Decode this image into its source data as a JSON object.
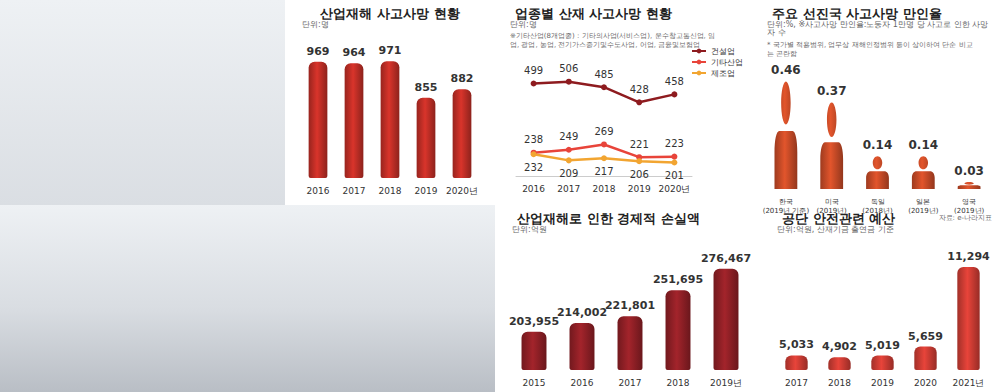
{
  "chart_data": [
    {
      "type": "bar",
      "title": "산업재해 사고사망 현황",
      "subtitle": "단위:명",
      "categories": [
        "2016",
        "2017",
        "2018",
        "2019",
        "2020년"
      ],
      "values": [
        969,
        964,
        971,
        855,
        882
      ],
      "color": "#d9342b",
      "ylim": [
        600,
        1000
      ],
      "data_labels": true,
      "tick_labels": "x"
    },
    {
      "type": "line",
      "title": "업종별 산재 사고사망 현황",
      "subtitle": "단위:명",
      "note": "※기타산업(8개업종) : 기타의사업(서비스업), 운수창고통신업, 임업, 광업, 농업, 전기가스증기및수도사업, 어업, 금융및보험업",
      "categories": [
        "2016",
        "2017",
        "2018",
        "2019",
        "2020년"
      ],
      "series": [
        {
          "name": "건설업",
          "color": "#8e1b1f",
          "values": [
            499,
            506,
            485,
            428,
            458
          ]
        },
        {
          "name": "기타산업",
          "color": "#e8443a",
          "values": [
            238,
            249,
            269,
            221,
            223
          ]
        },
        {
          "name": "제조업",
          "color": "#f2a531",
          "values": [
            232,
            209,
            217,
            206,
            201
          ]
        }
      ],
      "ylim": [
        150,
        550
      ],
      "legend": "top-right",
      "data_labels": true,
      "tick_labels": "x",
      "marker": "circle"
    },
    {
      "type": "bar",
      "title": "주요 선진국 사고사망 만인율",
      "subtitle": "단위:%, ※사고사망 만인율:노동자 1만명 당 사고로 인한 사망자 수",
      "note": "* 국가별 적용범위, 업무상 재해인정범위 등이 상이하여 단순 비교는 곤란함",
      "source": "자료: e-나라지표",
      "categories": [
        "한국\n(2019년 기준)",
        "미국\n(2019년)",
        "독일\n(2018년)",
        "일본\n(2019년)",
        "영국\n(2019년)"
      ],
      "values": [
        0.46,
        0.37,
        0.14,
        0.14,
        0.03
      ],
      "color": "#e2552c",
      "ylim": [
        0,
        0.5
      ],
      "data_labels": true,
      "tick_labels": "x",
      "marker": "person"
    },
    {
      "type": "bar",
      "title": "산업재해로 인한 경제적 손실액",
      "subtitle": "단위:억원",
      "categories": [
        "2015",
        "2016",
        "2017",
        "2018",
        "2019년"
      ],
      "values": [
        203955,
        214002,
        221801,
        251695,
        276467
      ],
      "value_labels": [
        "203,955",
        "214,002",
        "221,801",
        "251,695",
        "276,467"
      ],
      "color": "#a3242b",
      "ylim": [
        160000,
        290000
      ],
      "data_labels": true,
      "tick_labels": "x"
    },
    {
      "type": "bar",
      "title": "공단 안전관련 예산",
      "subtitle": "단위:억원, 산재기금 출연금 기준",
      "categories": [
        "2017",
        "2018",
        "2019",
        "2020",
        "2021년"
      ],
      "values": [
        5033,
        4902,
        5019,
        5659,
        11294
      ],
      "value_labels": [
        "5,033",
        "4,902",
        "5,019",
        "5,659",
        "11,294"
      ],
      "color": "#e8443a",
      "ylim": [
        4000,
        12000
      ],
      "data_labels": true,
      "tick_labels": "x"
    }
  ]
}
